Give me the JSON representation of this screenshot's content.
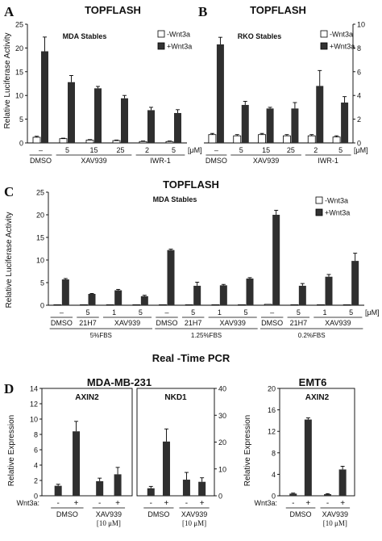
{
  "panels": [
    {
      "letter": "A",
      "title": "TOPFLASH",
      "subtitle": "MDA Stables",
      "ylabel": "Relative Luciferase Activity",
      "ylim": [
        0,
        25
      ],
      "yticks": [
        0,
        5,
        10,
        15,
        20,
        25
      ],
      "axis_side": "left",
      "legend": [
        "-Wnt3a",
        "+Wnt3a"
      ],
      "doses": [
        "–",
        "5",
        "15",
        "25",
        "2",
        "5"
      ],
      "unit": "[μM]",
      "groups": [
        {
          "label": "DMSO",
          "from": 0,
          "to": 0
        },
        {
          "label": "XAV939",
          "from": 1,
          "to": 3
        },
        {
          "label": "IWR-1",
          "from": 4,
          "to": 5
        }
      ],
      "minus": [
        1.2,
        0.9,
        0.6,
        0.5,
        0.3,
        0.3
      ],
      "minus_err": [
        0.2,
        0.1,
        0.1,
        0.1,
        0.1,
        0.1
      ],
      "plus": [
        19.3,
        12.8,
        11.5,
        9.4,
        6.9,
        6.3
      ],
      "plus_err": [
        3.0,
        1.4,
        0.4,
        0.6,
        0.6,
        0.7
      ]
    },
    {
      "letter": "B",
      "title": "TOPFLASH",
      "subtitle": "RKO Stables",
      "ylabel": "",
      "ylim": [
        0,
        10
      ],
      "yticks": [
        0,
        2,
        4,
        6,
        8,
        10
      ],
      "axis_side": "right",
      "legend": [
        "-Wnt3a",
        "+Wnt3a"
      ],
      "doses": [
        "–",
        "5",
        "15",
        "25",
        "2",
        "5"
      ],
      "unit": "[μM]",
      "groups": [
        {
          "label": "DMSO",
          "from": 0,
          "to": 0
        },
        {
          "label": "XAV939",
          "from": 1,
          "to": 3
        },
        {
          "label": "IWR-1",
          "from": 4,
          "to": 5
        }
      ],
      "minus": [
        0.7,
        0.6,
        0.7,
        0.6,
        0.6,
        0.5
      ],
      "minus_err": [
        0.1,
        0.1,
        0.1,
        0.1,
        0.1,
        0.1
      ],
      "plus": [
        8.3,
        3.2,
        2.9,
        2.9,
        4.8,
        3.4
      ],
      "plus_err": [
        0.6,
        0.3,
        0.1,
        0.5,
        1.3,
        0.5
      ]
    },
    {
      "letter": "C",
      "title": "TOPFLASH",
      "subtitle": "MDA Stables",
      "ylabel": "Relative Luciferase Activity",
      "ylim": [
        0,
        25
      ],
      "yticks": [
        0,
        5,
        10,
        15,
        20,
        25
      ],
      "axis_side": "left",
      "legend": [
        "-Wnt3a",
        "+Wnt3a"
      ],
      "doses": [
        "–",
        "5",
        "1",
        "5",
        "–",
        "5",
        "1",
        "5",
        "–",
        "5",
        "1",
        "5"
      ],
      "unit": "[μM]",
      "groups": [
        {
          "label": "DMSO",
          "from": 0,
          "to": 0
        },
        {
          "label": "21H7",
          "from": 1,
          "to": 1
        },
        {
          "label": "XAV939",
          "from": 2,
          "to": 3
        },
        {
          "label": "DMSO",
          "from": 4,
          "to": 4
        },
        {
          "label": "21H7",
          "from": 5,
          "to": 5
        },
        {
          "label": "XAV939",
          "from": 6,
          "to": 7
        },
        {
          "label": "DMSO",
          "from": 8,
          "to": 8
        },
        {
          "label": "21H7",
          "from": 9,
          "to": 9
        },
        {
          "label": "XAV939",
          "from": 10,
          "to": 11
        }
      ],
      "conditions": [
        {
          "label": "5%FBS",
          "from": 0,
          "to": 3
        },
        {
          "label": "1.25%FBS",
          "from": 4,
          "to": 7
        },
        {
          "label": "0.2%FBS",
          "from": 8,
          "to": 11
        }
      ],
      "minus": [
        0.1,
        0.1,
        0.1,
        0.1,
        0.1,
        0.1,
        0.1,
        0.1,
        0.2,
        0.1,
        0.1,
        0.1
      ],
      "minus_err": [
        0,
        0,
        0,
        0,
        0,
        0,
        0,
        0,
        0,
        0,
        0,
        0
      ],
      "plus": [
        5.7,
        2.5,
        3.3,
        2.0,
        12.2,
        4.3,
        4.4,
        5.9,
        20.0,
        4.3,
        6.3,
        9.8
      ],
      "plus_err": [
        0.2,
        0.1,
        0.2,
        0.2,
        0.2,
        0.8,
        0.2,
        0.2,
        1.0,
        0.5,
        0.5,
        1.7
      ]
    }
  ],
  "section_d": {
    "letter": "D",
    "title": "Real -Time PCR",
    "ylabel": "Relative Expression",
    "wnt_label": "Wnt3a:",
    "signs": [
      "-",
      "+",
      "-",
      "+"
    ],
    "group_labels": [
      "DMSO",
      "XAV939"
    ],
    "dose_label": "[10 μM]",
    "headers": [
      "MDA-MB-231",
      "EMT6"
    ],
    "subpanels": [
      {
        "gene": "AXIN2",
        "ylim": [
          0,
          14
        ],
        "yticks": [
          0,
          2,
          4,
          6,
          8,
          10,
          12,
          14
        ],
        "axis_side": "left",
        "values": [
          1.3,
          8.4,
          1.9,
          2.8
        ],
        "err": [
          0.2,
          1.3,
          0.4,
          0.9
        ]
      },
      {
        "gene": "NKD1",
        "ylim": [
          0,
          40
        ],
        "yticks": [
          0,
          10,
          20,
          30,
          40
        ],
        "axis_side": "right",
        "values": [
          2.8,
          20.2,
          6.0,
          5.2
        ],
        "err": [
          0.7,
          4.7,
          2.7,
          1.5
        ]
      },
      {
        "gene": "AXIN2",
        "ylim": [
          0,
          20
        ],
        "yticks": [
          0,
          4,
          8,
          12,
          16,
          20
        ],
        "axis_side": "left",
        "values": [
          0.4,
          14.2,
          0.3,
          4.9
        ],
        "err": [
          0.1,
          0.3,
          0.1,
          0.6
        ]
      }
    ]
  },
  "chart_data": [
    {
      "type": "bar",
      "title": "TOPFLASH",
      "subtitle": "MDA Stables",
      "ylabel": "Relative Luciferase Activity",
      "categories": [
        "DMSO",
        "XAV939 5",
        "XAV939 15",
        "XAV939 25",
        "IWR-1 2",
        "IWR-1 5"
      ],
      "ylim": [
        0,
        25
      ],
      "series": [
        {
          "name": "-Wnt3a",
          "values": [
            1.2,
            0.9,
            0.6,
            0.5,
            0.3,
            0.3
          ]
        },
        {
          "name": "+Wnt3a",
          "values": [
            19.3,
            12.8,
            11.5,
            9.4,
            6.9,
            6.3
          ]
        }
      ]
    },
    {
      "type": "bar",
      "title": "TOPFLASH",
      "subtitle": "RKO Stables",
      "categories": [
        "DMSO",
        "XAV939 5",
        "XAV939 15",
        "XAV939 25",
        "IWR-1 2",
        "IWR-1 5"
      ],
      "ylim": [
        0,
        10
      ],
      "series": [
        {
          "name": "-Wnt3a",
          "values": [
            0.7,
            0.6,
            0.7,
            0.6,
            0.6,
            0.5
          ]
        },
        {
          "name": "+Wnt3a",
          "values": [
            8.3,
            3.2,
            2.9,
            2.9,
            4.8,
            3.4
          ]
        }
      ]
    },
    {
      "type": "bar",
      "title": "TOPFLASH",
      "subtitle": "MDA Stables",
      "ylabel": "Relative Luciferase Activity",
      "ylim": [
        0,
        25
      ],
      "categories": [
        "5%FBS DMSO",
        "5%FBS 21H7 5",
        "5%FBS XAV939 1",
        "5%FBS XAV939 5",
        "1.25%FBS DMSO",
        "1.25%FBS 21H7 5",
        "1.25%FBS XAV939 1",
        "1.25%FBS XAV939 5",
        "0.2%FBS DMSO",
        "0.2%FBS 21H7 5",
        "0.2%FBS XAV939 1",
        "0.2%FBS XAV939 5"
      ],
      "series": [
        {
          "name": "-Wnt3a",
          "values": [
            0.1,
            0.1,
            0.1,
            0.1,
            0.1,
            0.1,
            0.1,
            0.1,
            0.2,
            0.1,
            0.1,
            0.1
          ]
        },
        {
          "name": "+Wnt3a",
          "values": [
            5.7,
            2.5,
            3.3,
            2.0,
            12.2,
            4.3,
            4.4,
            5.9,
            20.0,
            4.3,
            6.3,
            9.8
          ]
        }
      ]
    },
    {
      "type": "bar",
      "title": "AXIN2",
      "ylabel": "Relative Expression",
      "ylim": [
        0,
        14
      ],
      "categories": [
        "DMSO -",
        "DMSO +",
        "XAV939 -",
        "XAV939 +"
      ],
      "values": [
        1.3,
        8.4,
        1.9,
        2.8
      ]
    },
    {
      "type": "bar",
      "title": "NKD1",
      "ylim": [
        0,
        40
      ],
      "categories": [
        "DMSO -",
        "DMSO +",
        "XAV939 -",
        "XAV939 +"
      ],
      "values": [
        2.8,
        20.2,
        6.0,
        5.2
      ]
    },
    {
      "type": "bar",
      "title": "AXIN2",
      "ylabel": "Relative Expression",
      "ylim": [
        0,
        20
      ],
      "categories": [
        "DMSO -",
        "DMSO +",
        "XAV939 -",
        "XAV939 +"
      ],
      "values": [
        0.4,
        14.2,
        0.3,
        4.9
      ]
    }
  ]
}
